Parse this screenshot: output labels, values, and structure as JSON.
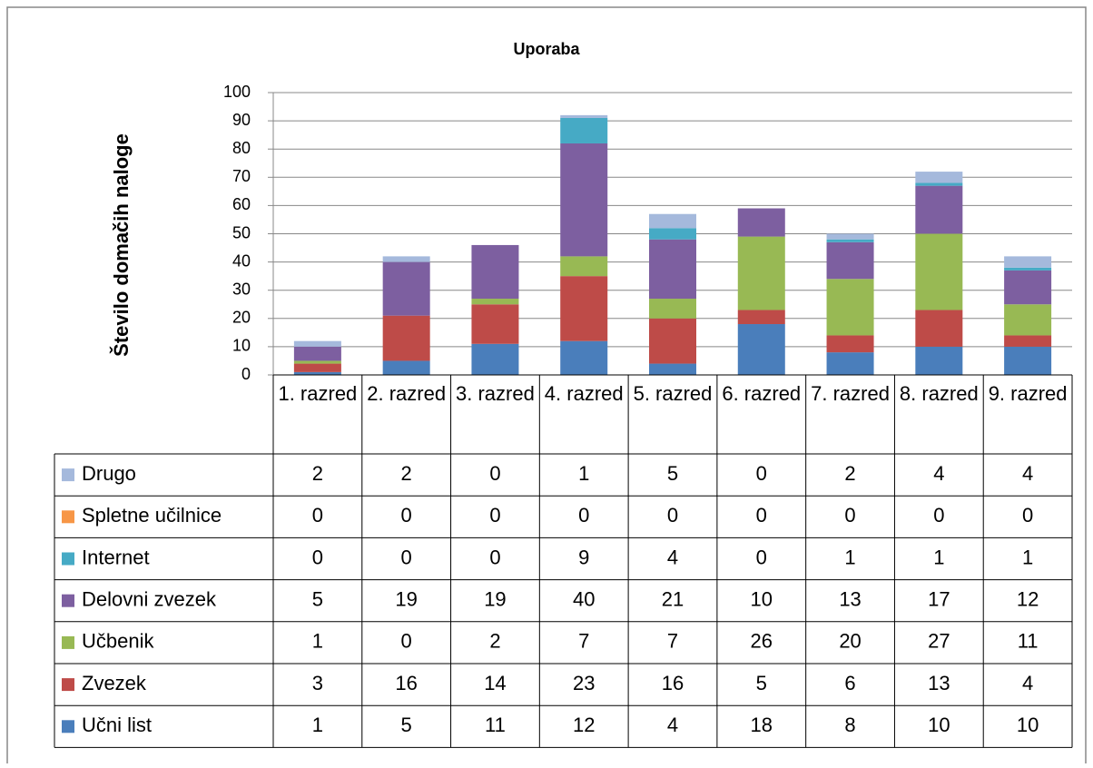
{
  "chart_data": {
    "type": "stacked_bar",
    "title": "Uporaba",
    "y_label": "Število domačih naloge",
    "categories": [
      "1. razred",
      "2. razred",
      "3. razred",
      "4. razred",
      "5. razred",
      "6. razred",
      "7. razred",
      "8. razred",
      "9. razred"
    ],
    "series": [
      {
        "name": "Učni list",
        "color": "#4a7ebb",
        "values": [
          1,
          5,
          11,
          12,
          4,
          18,
          8,
          10,
          10
        ]
      },
      {
        "name": "Zvezek",
        "color": "#be4b48",
        "values": [
          3,
          16,
          14,
          23,
          16,
          5,
          6,
          13,
          4
        ]
      },
      {
        "name": "Učbenik",
        "color": "#98b954",
        "values": [
          1,
          0,
          2,
          7,
          7,
          26,
          20,
          27,
          11
        ]
      },
      {
        "name": "Delovni zvezek",
        "color": "#7d5fa0",
        "values": [
          5,
          19,
          19,
          40,
          21,
          10,
          13,
          17,
          12
        ]
      },
      {
        "name": "Internet",
        "color": "#46aac5",
        "values": [
          0,
          0,
          0,
          9,
          4,
          0,
          1,
          1,
          1
        ]
      },
      {
        "name": "Spletne učilnice",
        "color": "#f79646",
        "values": [
          0,
          0,
          0,
          0,
          0,
          0,
          0,
          0,
          0
        ]
      },
      {
        "name": "Drugo",
        "color": "#a5b9dc",
        "values": [
          2,
          2,
          0,
          1,
          5,
          0,
          2,
          4,
          4
        ]
      }
    ],
    "ylim": [
      0,
      100
    ],
    "yticks": [
      0,
      10,
      20,
      30,
      40,
      50,
      60,
      70,
      80,
      90,
      100
    ],
    "grid": true,
    "data_table": true
  }
}
